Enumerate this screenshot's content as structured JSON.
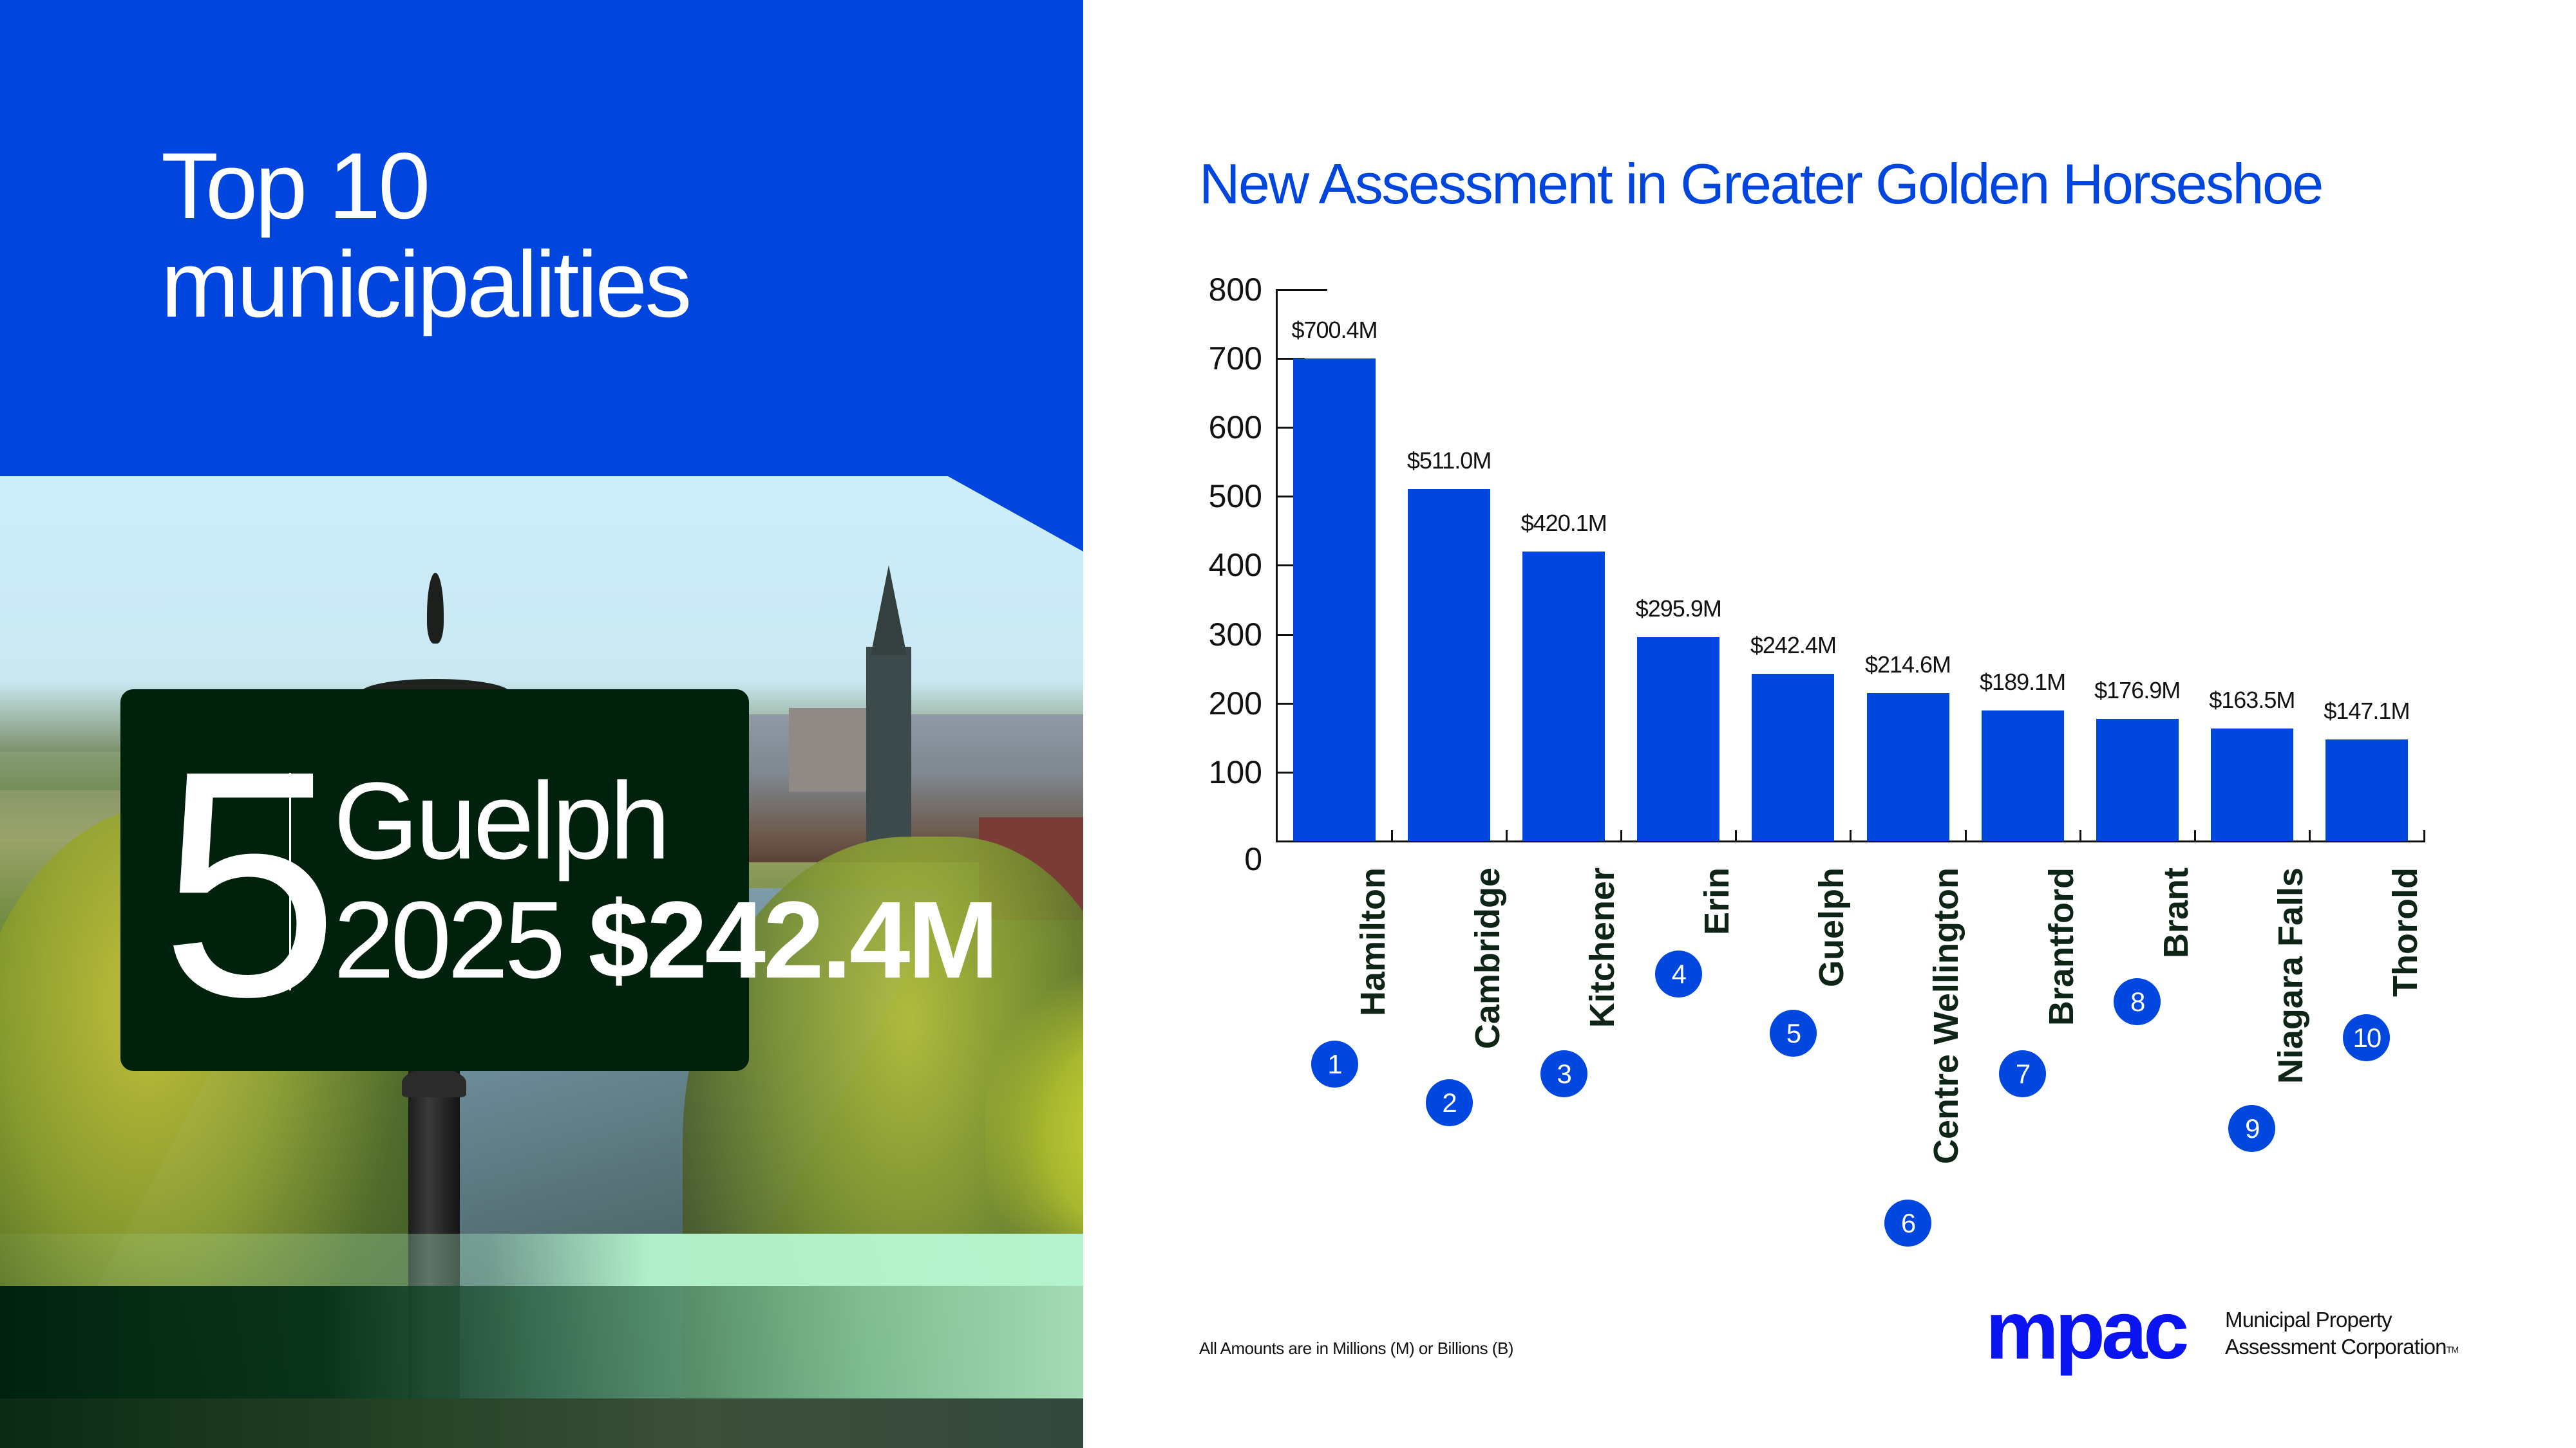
{
  "left_panel": {
    "title_line1": "Top 10",
    "title_line2": "municipalities",
    "sign": {
      "rank": "5",
      "municipality": "Guelph",
      "year": "2025",
      "amount": "$242.4M"
    },
    "colors": {
      "blue_panel": "#0045dd",
      "sign_background": "#00210c",
      "band_light": "#b4f3cd"
    }
  },
  "chart_data": {
    "type": "bar",
    "title": "New Assessment in Greater Golden Horseshoe",
    "xlabel": "",
    "ylabel": "",
    "ylim": [
      0,
      800
    ],
    "yticks": [
      0,
      100,
      200,
      300,
      400,
      500,
      600,
      700,
      800
    ],
    "grid": false,
    "legend": null,
    "bar_color": "#0047df",
    "categories": [
      "Hamilton",
      "Cambridge",
      "Kitchener",
      "Erin",
      "Guelph",
      "Centre Wellington",
      "Brantford",
      "Brant",
      "Niagara Falls",
      "Thorold"
    ],
    "values": [
      700.4,
      511.0,
      420.1,
      295.9,
      242.4,
      214.6,
      189.1,
      176.9,
      163.5,
      147.1
    ],
    "value_labels": [
      "$700.4M",
      "$511.0M",
      "$420.1M",
      "$295.9M",
      "$242.4M",
      "$214.6M",
      "$189.1M",
      "$176.9M",
      "$163.5M",
      "$147.1M"
    ],
    "ranks": [
      "1",
      "2",
      "3",
      "4",
      "5",
      "6",
      "7",
      "8",
      "9",
      "10"
    ],
    "units": "Millions of dollars"
  },
  "footer": {
    "note": "All Amounts are in Millions (M) or Billions (B)",
    "logo_mark": "mpac",
    "logo_line1": "Municipal Property",
    "logo_line2": "Assessment Corporation",
    "trademark": "TM",
    "logo_color": "#0a14f0"
  }
}
